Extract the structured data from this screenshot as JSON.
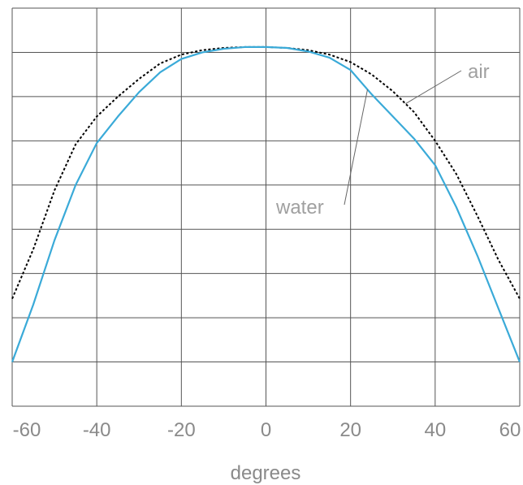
{
  "chart_data": {
    "type": "line",
    "title": "",
    "xlabel": "degrees",
    "ylabel": "",
    "xlim": [
      -60,
      60
    ],
    "ylim": [
      0,
      9
    ],
    "x_ticks": [
      -60,
      -40,
      -20,
      0,
      20,
      40,
      60
    ],
    "x_tick_labels": [
      "-60",
      "-40",
      "-20",
      "0",
      "20",
      "40",
      "60"
    ],
    "y_gridlines": [
      0,
      1,
      2,
      3,
      4,
      5,
      6,
      7,
      8,
      9
    ],
    "grid": true,
    "legend": "none",
    "series": [
      {
        "name": "air",
        "style": "dotted",
        "color": "#000000",
        "x": [
          -60,
          -55,
          -50,
          -45,
          -40,
          -35,
          -30,
          -25,
          -20,
          -15,
          -10,
          -5,
          0,
          5,
          10,
          15,
          20,
          25,
          30,
          35,
          40,
          45,
          50,
          55,
          60
        ],
        "y": [
          2.43,
          3.55,
          4.88,
          5.92,
          6.55,
          7.0,
          7.4,
          7.75,
          7.95,
          8.05,
          8.1,
          8.12,
          8.12,
          8.1,
          8.05,
          7.95,
          7.78,
          7.5,
          7.12,
          6.65,
          6.0,
          5.25,
          4.3,
          3.3,
          2.43
        ]
      },
      {
        "name": "water",
        "style": "solid",
        "color": "#3aaad8",
        "x": [
          -60,
          -55,
          -50,
          -45,
          -40,
          -35,
          -30,
          -25,
          -20,
          -15,
          -10,
          -5,
          0,
          5,
          10,
          15,
          20,
          25,
          30,
          35,
          40,
          45,
          50,
          55,
          60
        ],
        "y": [
          1.0,
          2.3,
          3.75,
          5.0,
          5.95,
          6.55,
          7.1,
          7.55,
          7.85,
          8.0,
          8.08,
          8.12,
          8.12,
          8.1,
          8.02,
          7.88,
          7.6,
          7.05,
          6.55,
          6.05,
          5.45,
          4.5,
          3.4,
          2.2,
          1.0
        ]
      }
    ],
    "annotations": [
      {
        "text": "air",
        "target_series": "air",
        "at_x": 33
      },
      {
        "text": "water",
        "target_series": "water",
        "at_x": 24
      }
    ]
  }
}
